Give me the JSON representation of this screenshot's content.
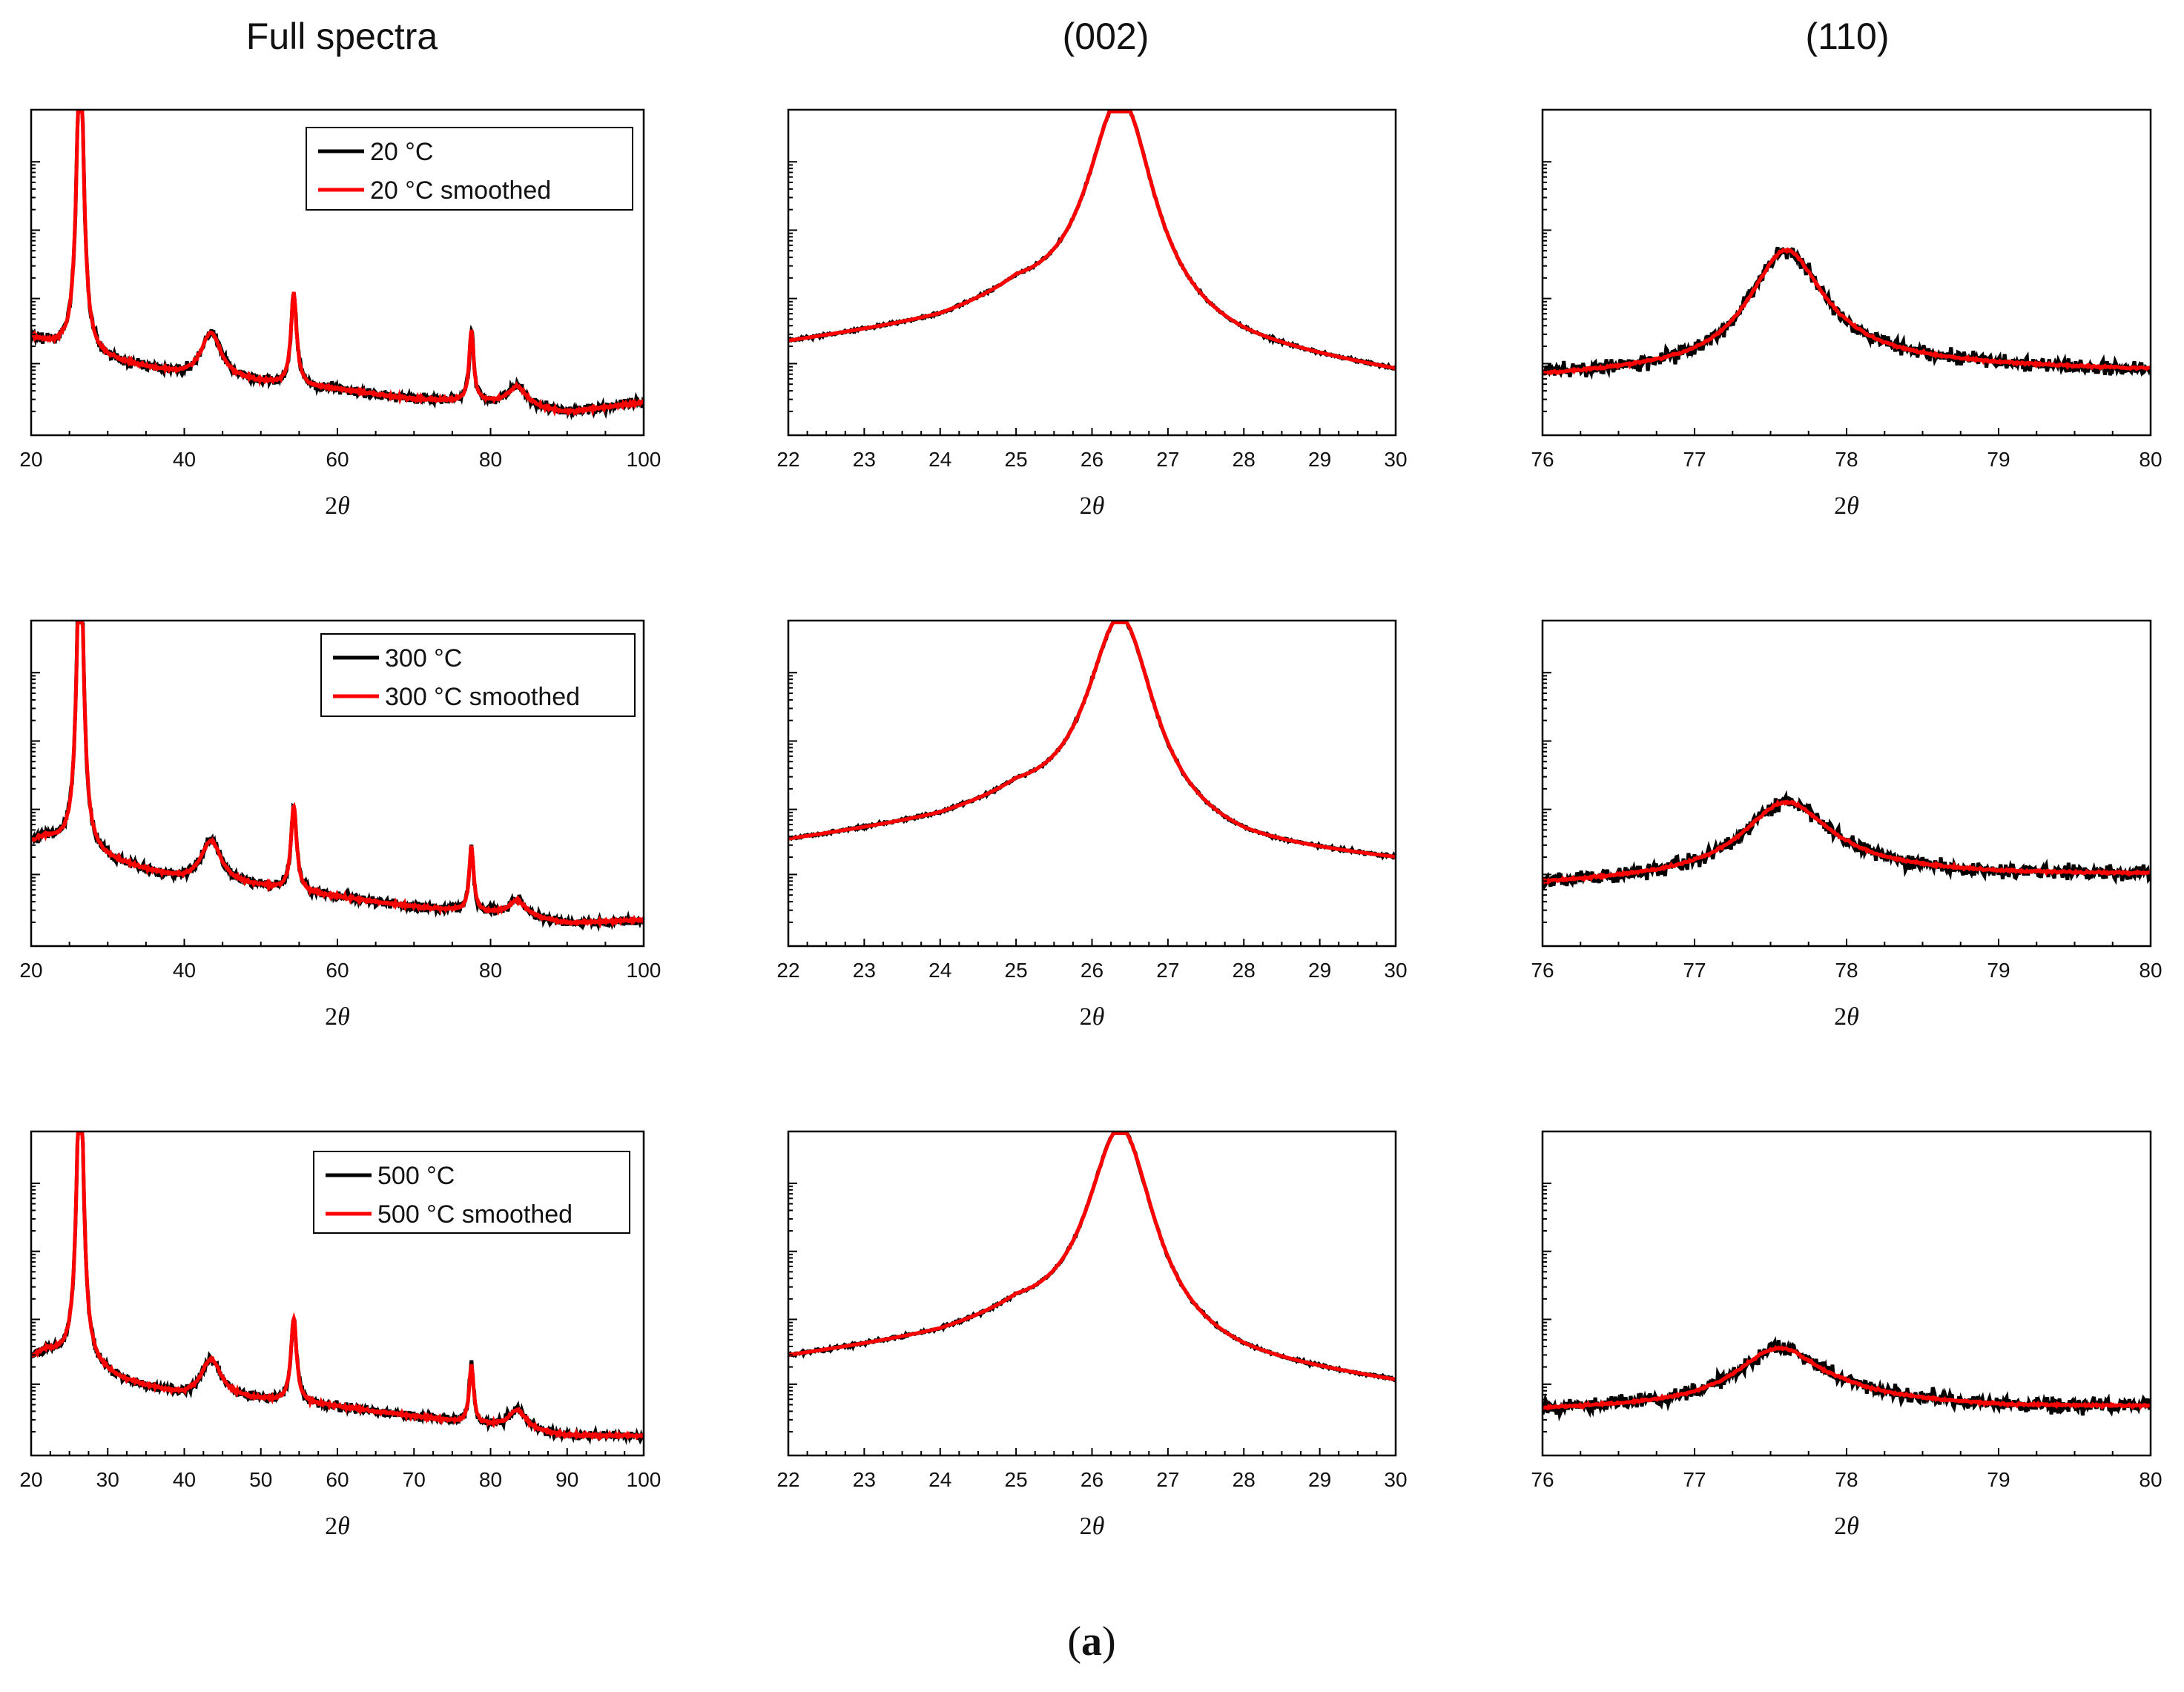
{
  "figure": {
    "column_titles": [
      "Full spectra",
      "(002)",
      "(110)"
    ],
    "caption_open": "(",
    "caption_letter": "a",
    "caption_close": ")",
    "colors": {
      "raw": "#000000",
      "smoothed": "#ff0000"
    }
  },
  "chart_data": [
    {
      "type": "line",
      "panel": "full-20",
      "title": "Full spectra",
      "xlabel": "2θ",
      "ylabel": "",
      "yscale": "log",
      "xlim": [
        20,
        100
      ],
      "xticks": [
        20,
        40,
        60,
        80,
        100
      ],
      "legend": [
        "20 °C",
        "20 °C smoothed"
      ],
      "legend_position": "top-right",
      "series": [
        {
          "name": "20 °C",
          "color": "#000000"
        },
        {
          "name": "20 °C smoothed",
          "color": "#ff0000"
        }
      ],
      "profile": {
        "baseline": [
          [
            20,
            0.3
          ],
          [
            22,
            0.28
          ],
          [
            28,
            0.24
          ],
          [
            32,
            0.22
          ],
          [
            40,
            0.18
          ],
          [
            50,
            0.16
          ],
          [
            60,
            0.14
          ],
          [
            70,
            0.11
          ],
          [
            80,
            0.1
          ],
          [
            90,
            0.07
          ],
          [
            100,
            0.1
          ]
        ],
        "peaks": [
          [
            26.4,
            0.98,
            0.55
          ],
          [
            43.5,
            0.14,
            1.6
          ],
          [
            54.3,
            0.28,
            0.45
          ],
          [
            77.5,
            0.22,
            0.35
          ],
          [
            83.5,
            0.06,
            1.4
          ]
        ],
        "noise": 0.022,
        "smooth_noise": 0.006
      }
    },
    {
      "type": "line",
      "panel": "p002-20",
      "title": "(002)",
      "xlabel": "2θ",
      "yscale": "log",
      "xlim": [
        22,
        30
      ],
      "xticks": [
        22,
        23,
        24,
        25,
        26,
        27,
        28,
        29,
        30
      ],
      "series": [
        {
          "name": "20 °C",
          "color": "#000000"
        },
        {
          "name": "20 °C smoothed",
          "color": "#ff0000"
        }
      ],
      "profile": {
        "baseline": [
          [
            22,
            0.28
          ],
          [
            24,
            0.34
          ],
          [
            25,
            0.4
          ],
          [
            28,
            0.26
          ],
          [
            30,
            0.19
          ]
        ],
        "peaks": [
          [
            26.38,
            0.7,
            0.55
          ]
        ],
        "noise": 0.006,
        "smooth_noise": 0.0
      }
    },
    {
      "type": "line",
      "panel": "p110-20",
      "title": "(110)",
      "xlabel": "2θ",
      "yscale": "log",
      "xlim": [
        76,
        80
      ],
      "xticks": [
        76,
        77,
        78,
        79,
        80
      ],
      "series": [
        {
          "name": "20 °C",
          "color": "#000000"
        },
        {
          "name": "20 °C smoothed",
          "color": "#ff0000"
        }
      ],
      "profile": {
        "baseline": [
          [
            76,
            0.18
          ],
          [
            77,
            0.2
          ],
          [
            78,
            0.23
          ],
          [
            79,
            0.21
          ],
          [
            80,
            0.2
          ]
        ],
        "peaks": [
          [
            77.6,
            0.35,
            0.3
          ]
        ],
        "noise": 0.035,
        "smooth_noise": 0.005
      }
    },
    {
      "type": "line",
      "panel": "full-300",
      "xlabel": "2θ",
      "yscale": "log",
      "xlim": [
        20,
        100
      ],
      "xticks": [
        20,
        40,
        60,
        80,
        100
      ],
      "legend": [
        "300 °C",
        "300 °C smoothed"
      ],
      "legend_position": "top-right",
      "series": [
        {
          "name": "300 °C",
          "color": "#000000"
        },
        {
          "name": "300 °C smoothed",
          "color": "#ff0000"
        }
      ],
      "profile": {
        "baseline": [
          [
            20,
            0.32
          ],
          [
            22,
            0.33
          ],
          [
            28,
            0.28
          ],
          [
            32,
            0.25
          ],
          [
            40,
            0.2
          ],
          [
            50,
            0.18
          ],
          [
            60,
            0.15
          ],
          [
            70,
            0.12
          ],
          [
            80,
            0.1
          ],
          [
            90,
            0.07
          ],
          [
            100,
            0.08
          ]
        ],
        "peaks": [
          [
            26.4,
            0.97,
            0.55
          ],
          [
            43.5,
            0.13,
            1.6
          ],
          [
            54.3,
            0.26,
            0.45
          ],
          [
            77.5,
            0.2,
            0.35
          ],
          [
            83.5,
            0.05,
            1.4
          ]
        ],
        "noise": 0.02,
        "smooth_noise": 0.006
      }
    },
    {
      "type": "line",
      "panel": "p002-300",
      "xlabel": "2θ",
      "yscale": "log",
      "xlim": [
        22,
        30
      ],
      "xticks": [
        22,
        23,
        24,
        25,
        26,
        27,
        28,
        29,
        30
      ],
      "series": [
        {
          "name": "300 °C",
          "color": "#000000"
        },
        {
          "name": "300 °C smoothed",
          "color": "#ff0000"
        }
      ],
      "profile": {
        "baseline": [
          [
            22,
            0.32
          ],
          [
            24,
            0.38
          ],
          [
            25,
            0.43
          ],
          [
            28,
            0.3
          ],
          [
            30,
            0.26
          ]
        ],
        "peaks": [
          [
            26.38,
            0.64,
            0.55
          ]
        ],
        "noise": 0.006,
        "smooth_noise": 0.0
      }
    },
    {
      "type": "line",
      "panel": "p110-300",
      "xlabel": "2θ",
      "yscale": "log",
      "xlim": [
        76,
        80
      ],
      "xticks": [
        76,
        77,
        78,
        79,
        80
      ],
      "series": [
        {
          "name": "300 °C",
          "color": "#000000"
        },
        {
          "name": "300 °C smoothed",
          "color": "#ff0000"
        }
      ],
      "profile": {
        "baseline": [
          [
            76,
            0.19
          ],
          [
            77,
            0.21
          ],
          [
            78,
            0.23
          ],
          [
            79,
            0.22
          ],
          [
            80,
            0.22
          ]
        ],
        "peaks": [
          [
            77.6,
            0.22,
            0.35
          ]
        ],
        "noise": 0.035,
        "smooth_noise": 0.005
      }
    },
    {
      "type": "line",
      "panel": "full-500",
      "xlabel": "2θ",
      "yscale": "log",
      "xlim": [
        20,
        100
      ],
      "xticks": [
        20,
        30,
        40,
        50,
        60,
        70,
        80,
        90,
        100
      ],
      "legend": [
        "500 °C",
        "500 °C smoothed"
      ],
      "legend_position": "top-right",
      "series": [
        {
          "name": "500 °C",
          "color": "#000000"
        },
        {
          "name": "500 °C smoothed",
          "color": "#ff0000"
        }
      ],
      "profile": {
        "baseline": [
          [
            20,
            0.3
          ],
          [
            22,
            0.32
          ],
          [
            28,
            0.27
          ],
          [
            32,
            0.23
          ],
          [
            40,
            0.18
          ],
          [
            50,
            0.17
          ],
          [
            60,
            0.15
          ],
          [
            70,
            0.12
          ],
          [
            80,
            0.09
          ],
          [
            90,
            0.06
          ],
          [
            100,
            0.06
          ]
        ],
        "peaks": [
          [
            26.4,
            0.96,
            0.55
          ],
          [
            43.5,
            0.12,
            1.6
          ],
          [
            54.3,
            0.26,
            0.45
          ],
          [
            77.5,
            0.18,
            0.35
          ],
          [
            83.5,
            0.06,
            1.4
          ]
        ],
        "noise": 0.02,
        "smooth_noise": 0.006
      }
    },
    {
      "type": "line",
      "panel": "p002-500",
      "xlabel": "2θ",
      "yscale": "log",
      "xlim": [
        22,
        30
      ],
      "xticks": [
        22,
        23,
        24,
        25,
        26,
        27,
        28,
        29,
        30
      ],
      "series": [
        {
          "name": "500 °C",
          "color": "#000000"
        },
        {
          "name": "500 °C smoothed",
          "color": "#ff0000"
        }
      ],
      "profile": {
        "baseline": [
          [
            22,
            0.3
          ],
          [
            24,
            0.36
          ],
          [
            25,
            0.41
          ],
          [
            28,
            0.28
          ],
          [
            30,
            0.22
          ]
        ],
        "peaks": [
          [
            26.38,
            0.66,
            0.55
          ]
        ],
        "noise": 0.006,
        "smooth_noise": 0.0
      }
    },
    {
      "type": "line",
      "panel": "p110-500",
      "xlabel": "2θ",
      "yscale": "log",
      "xlim": [
        76,
        80
      ],
      "xticks": [
        76,
        77,
        78,
        79,
        80
      ],
      "series": [
        {
          "name": "500 °C",
          "color": "#000000"
        },
        {
          "name": "500 °C smoothed",
          "color": "#ff0000"
        }
      ],
      "profile": {
        "baseline": [
          [
            76,
            0.14
          ],
          [
            77,
            0.15
          ],
          [
            78,
            0.17
          ],
          [
            79,
            0.15
          ],
          [
            80,
            0.15
          ]
        ],
        "peaks": [
          [
            77.55,
            0.17,
            0.35
          ]
        ],
        "noise": 0.035,
        "smooth_noise": 0.005
      }
    }
  ]
}
